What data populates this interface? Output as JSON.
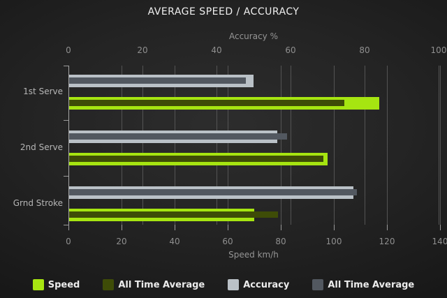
{
  "chart_data": {
    "type": "bar",
    "orientation": "horizontal",
    "title": "AVERAGE SPEED / ACCURACY",
    "categories": [
      "1st Serve",
      "2nd Serve",
      "Grnd Stroke"
    ],
    "axes": {
      "top": {
        "label": "Accuracy %",
        "ticks": [
          0,
          20,
          40,
          60,
          80,
          100
        ],
        "range": [
          0,
          100
        ]
      },
      "bottom": {
        "label": "Speed km/h",
        "ticks": [
          0,
          20,
          40,
          60,
          80,
          100,
          120,
          140
        ],
        "range": [
          0,
          140
        ]
      }
    },
    "grid": true,
    "legend_position": "bottom",
    "series": [
      {
        "name": "Speed",
        "axis": "bottom",
        "row": "speed",
        "role": "main",
        "color": "#a6e511",
        "values": [
          117,
          97.5,
          70
        ]
      },
      {
        "name": "All Time Average",
        "axis": "bottom",
        "row": "speed",
        "role": "overlay",
        "color": "#3e4c07",
        "values": [
          104,
          96,
          79
        ]
      },
      {
        "name": "Accuracy",
        "axis": "top",
        "row": "accuracy",
        "role": "main",
        "color": "#bac1c7",
        "values": [
          50,
          56.5,
          77
        ]
      },
      {
        "name": "All Time Average",
        "axis": "top",
        "row": "accuracy",
        "role": "overlay",
        "color": "#525860",
        "values": [
          48,
          59,
          78
        ]
      }
    ]
  }
}
